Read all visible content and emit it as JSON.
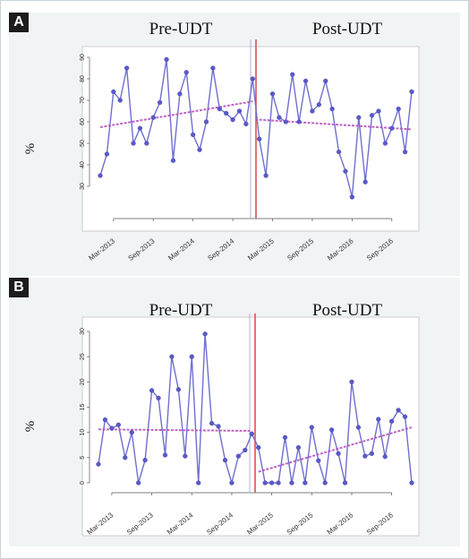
{
  "panels": [
    {
      "label": "A",
      "phase_labels": [
        "Pre-UDT",
        "Post-UDT"
      ],
      "ylabel": "%",
      "chart_data": {
        "type": "line",
        "ylim": [
          20,
          90
        ],
        "yticks": [
          30,
          40,
          50,
          60,
          70,
          80,
          90
        ],
        "x_tick_labels": [
          "Mar-2013",
          "Sep-2013",
          "Mar-2014",
          "Sep-2014",
          "Mar-2015",
          "Sep-2015",
          "Mar-2016",
          "Sep-2016"
        ],
        "x_tick_index": [
          2,
          8,
          14,
          20,
          26,
          32,
          38,
          44
        ],
        "intervention_index": 24,
        "series": [
          {
            "values": [
              35,
              45,
              74,
              70,
              85,
              50,
              57,
              50,
              62,
              69,
              89,
              42,
              73,
              83,
              54,
              47,
              60,
              85,
              66,
              64,
              61,
              65,
              59,
              80,
              52,
              35,
              73,
              62,
              60,
              82,
              60,
              79,
              65,
              68,
              79,
              66,
              46,
              37,
              25,
              62,
              32,
              63,
              65,
              50,
              57,
              66,
              46,
              74
            ]
          }
        ],
        "trend_pre": {
          "from_index": 0,
          "to_index": 23,
          "start": 57.5,
          "end": 69.5
        },
        "trend_post": {
          "from_index": 24,
          "to_index": 47,
          "start": 61,
          "end": 56.5
        }
      }
    },
    {
      "label": "B",
      "phase_labels": [
        "Pre-UDT",
        "Post-UDT"
      ],
      "ylabel": "%",
      "chart_data": {
        "type": "line",
        "ylim": [
          0,
          30
        ],
        "yticks": [
          0,
          5,
          10,
          15,
          20,
          25,
          30
        ],
        "x_tick_labels": [
          "Mar-2013",
          "Sep-2013",
          "Mar-2014",
          "Sep-2014",
          "Mar-2015",
          "Sep-2015",
          "Mar-2016",
          "Sep-2016"
        ],
        "x_tick_index": [
          2,
          8,
          14,
          20,
          26,
          32,
          38,
          44
        ],
        "intervention_index": 24,
        "series": [
          {
            "values": [
              3.7,
              12.5,
              10.8,
              11.5,
              5,
              10,
              0,
              4.5,
              18.3,
              16.8,
              5.5,
              25,
              18.5,
              5.3,
              25,
              0,
              29.5,
              11.8,
              11.2,
              4.5,
              0,
              5.3,
              6.5,
              9.7,
              7,
              0,
              0,
              0,
              9,
              0,
              7,
              0,
              11,
              4.4,
              0,
              10.5,
              5.8,
              0,
              20,
              11,
              5.3,
              5.8,
              12.6,
              5.2,
              12.2,
              14.4,
              13.1,
              0
            ]
          }
        ],
        "trend_pre": {
          "from_index": 0,
          "to_index": 23,
          "start": 10.6,
          "end": 10.3
        },
        "trend_post": {
          "from_index": 24,
          "to_index": 47,
          "start": 2.2,
          "end": 11
        }
      }
    }
  ]
}
